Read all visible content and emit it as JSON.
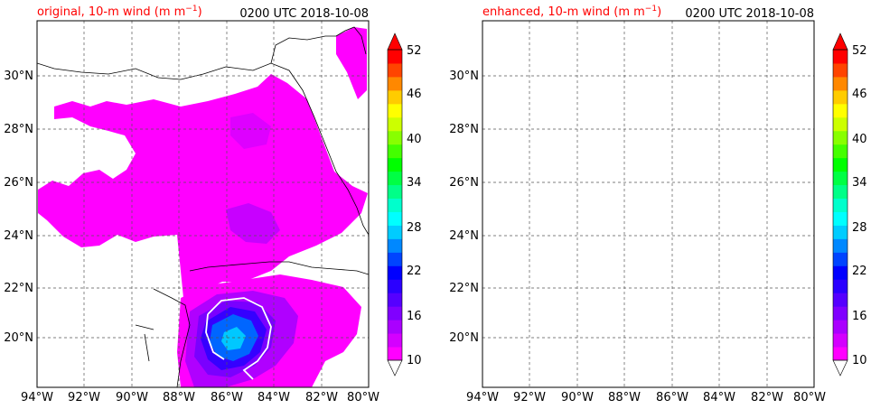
{
  "figure": {
    "panels": [
      {
        "id": "original",
        "title_left": "original, 10-m wind (m m",
        "title_left_sup": "−1",
        "title_left_close": ")",
        "title_right": "0200 UTC 2018-10-08"
      },
      {
        "id": "enhanced",
        "title_left": "enhanced, 10-m wind (m m",
        "title_left_sup": "−1",
        "title_left_close": ")",
        "title_right": "0200 UTC 2018-10-08"
      }
    ],
    "x_ticks": [
      "94°W",
      "92°W",
      "90°W",
      "88°W",
      "86°W",
      "84°W",
      "82°W",
      "80°W"
    ],
    "y_ticks": [
      "30°N",
      "28°N",
      "26°N",
      "24°N",
      "22°N",
      "20°N"
    ],
    "colorbar": {
      "tick_labels": [
        "52",
        "46",
        "40",
        "34",
        "28",
        "22",
        "16",
        "10"
      ],
      "colors": [
        "#ff00ff",
        "#d400ff",
        "#aa00ff",
        "#8000ff",
        "#5500ff",
        "#2b00ff",
        "#0000ff",
        "#0044ff",
        "#0088ff",
        "#00ccff",
        "#00ffff",
        "#00ffcc",
        "#00ff88",
        "#00ff44",
        "#00ff00",
        "#44ff00",
        "#88ff00",
        "#ccff00",
        "#ffff00",
        "#ffcc00",
        "#ff8800",
        "#ff4400",
        "#ff0000"
      ]
    }
  }
}
